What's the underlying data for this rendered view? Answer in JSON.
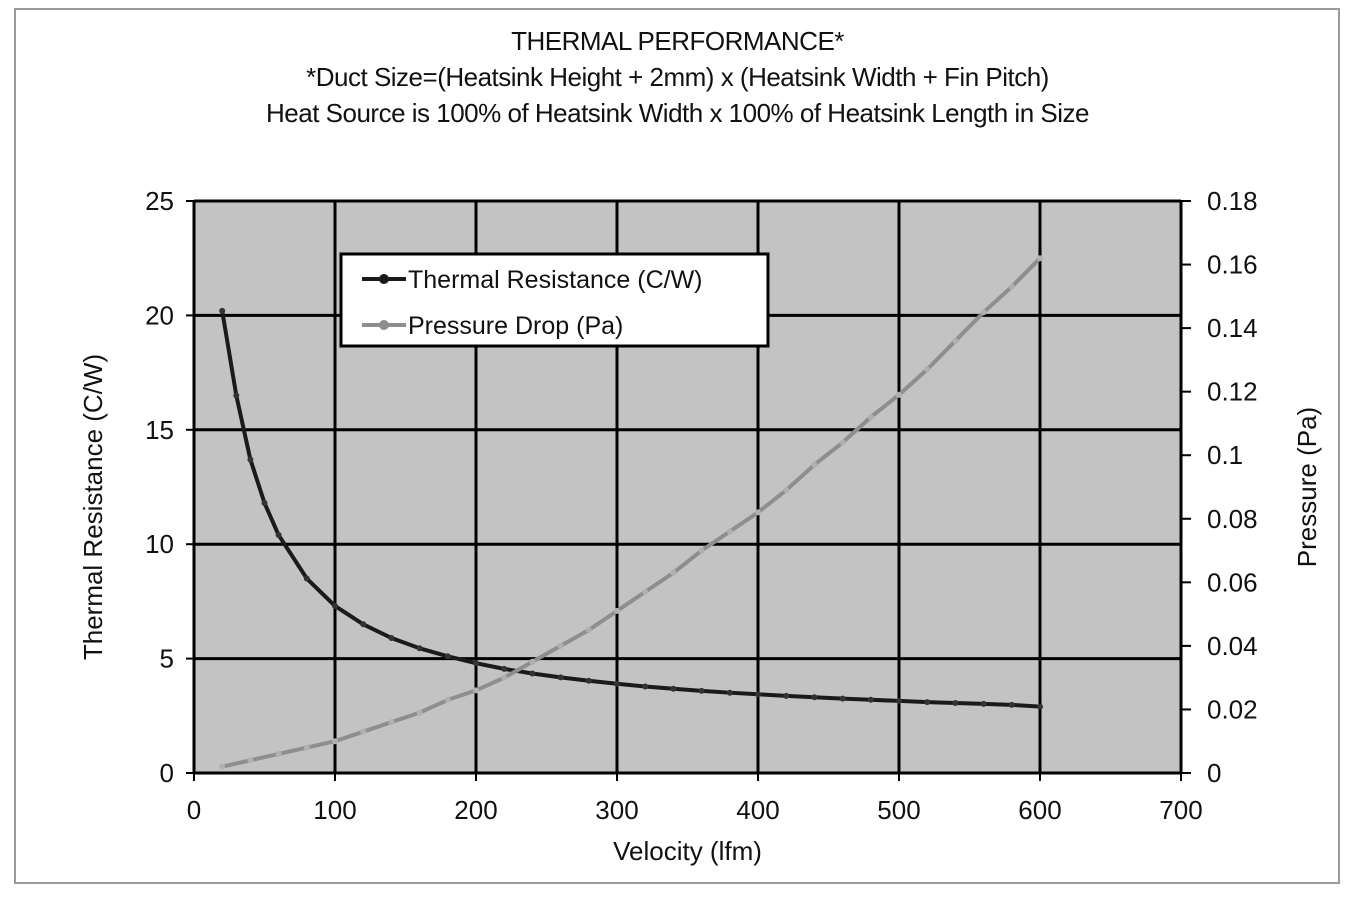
{
  "chart_data": {
    "type": "line",
    "title": "THERMAL PERFORMANCE*",
    "subtitle_lines": [
      "*Duct Size=(Heatsink Height + 2mm) x (Heatsink Width + Fin Pitch)",
      "Heat Source is 100% of Heatsink Width x 100% of Heatsink Length in Size"
    ],
    "xlabel": "Velocity (lfm)",
    "ylabel": "Thermal Resistance (C/W)",
    "y2label": "Pressure (Pa)",
    "xlim": [
      0,
      700
    ],
    "ylim": [
      0,
      25
    ],
    "y2lim": [
      0,
      0.18
    ],
    "xticks": [
      "0",
      "100",
      "200",
      "300",
      "400",
      "500",
      "600",
      "700"
    ],
    "yticks": [
      "0",
      "5",
      "10",
      "15",
      "20",
      "25"
    ],
    "y2ticks": [
      "0",
      "0.02",
      "0.04",
      "0.06",
      "0.08",
      "0.1",
      "0.12",
      "0.14",
      "0.16",
      "0.18"
    ],
    "grid": true,
    "legend_position": "top-left",
    "colors": {
      "plot_bg": "#c3c3c3",
      "thermal": "#1a1a1a",
      "pressure": "#8e8e8e",
      "grid": "#000000"
    },
    "series": [
      {
        "name": "Thermal Resistance (C/W)",
        "axis": "left",
        "x": [
          20,
          30,
          40,
          50,
          60,
          80,
          100,
          120,
          140,
          160,
          180,
          200,
          220,
          240,
          260,
          280,
          300,
          320,
          340,
          360,
          380,
          400,
          420,
          440,
          460,
          480,
          500,
          520,
          540,
          560,
          580,
          600
        ],
        "y": [
          20.2,
          16.5,
          13.7,
          11.8,
          10.4,
          8.5,
          7.3,
          6.5,
          5.9,
          5.45,
          5.1,
          4.8,
          4.55,
          4.35,
          4.18,
          4.03,
          3.9,
          3.78,
          3.68,
          3.59,
          3.51,
          3.44,
          3.37,
          3.31,
          3.25,
          3.2,
          3.15,
          3.1,
          3.06,
          3.02,
          2.98,
          2.9
        ]
      },
      {
        "name": "Pressure Drop (Pa)",
        "axis": "right",
        "x": [
          20,
          40,
          60,
          80,
          100,
          120,
          140,
          160,
          180,
          200,
          220,
          240,
          260,
          280,
          300,
          320,
          340,
          360,
          380,
          400,
          420,
          440,
          460,
          480,
          500,
          520,
          540,
          560,
          580,
          600
        ],
        "y": [
          0.002,
          0.004,
          0.006,
          0.008,
          0.01,
          0.013,
          0.016,
          0.019,
          0.023,
          0.026,
          0.03,
          0.035,
          0.04,
          0.045,
          0.051,
          0.057,
          0.063,
          0.07,
          0.076,
          0.082,
          0.089,
          0.097,
          0.104,
          0.112,
          0.119,
          0.127,
          0.136,
          0.145,
          0.153,
          0.162
        ]
      }
    ]
  }
}
